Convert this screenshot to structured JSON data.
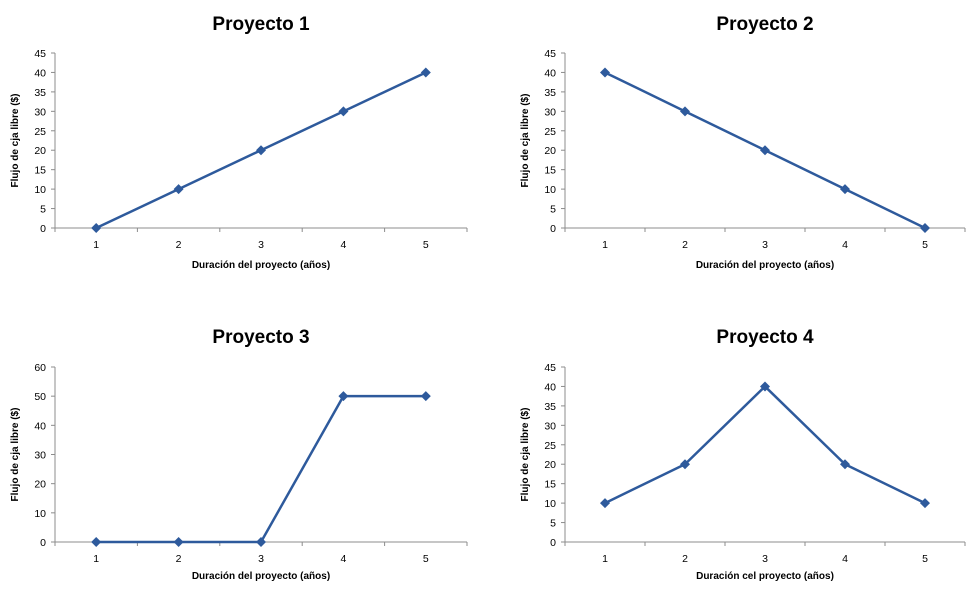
{
  "colors": {
    "series": "#2e5a9c",
    "axis": "#8c8c8c",
    "text": "#000000"
  },
  "chart_data": [
    {
      "type": "line",
      "title": "Proyecto 1",
      "xlabel": "Duración del proyecto (años)",
      "ylabel": "Flujo de cja libre ($)",
      "categories": [
        "1",
        "2",
        "3",
        "4",
        "5"
      ],
      "values": [
        0,
        10,
        20,
        30,
        40
      ],
      "yticks": [
        "0",
        "5",
        "10",
        "15",
        "20",
        "25",
        "30",
        "35",
        "40",
        "45"
      ],
      "ylim": [
        0,
        45
      ],
      "grid": false,
      "legend": "none",
      "marker": "diamond"
    },
    {
      "type": "line",
      "title": "Proyecto 2",
      "xlabel": "Duración del proyecto (años)",
      "ylabel": "Flujo de cja libre ($)",
      "categories": [
        "1",
        "2",
        "3",
        "4",
        "5"
      ],
      "values": [
        40,
        30,
        20,
        10,
        0
      ],
      "yticks": [
        "0",
        "5",
        "10",
        "15",
        "20",
        "25",
        "30",
        "35",
        "40",
        "45"
      ],
      "ylim": [
        0,
        45
      ],
      "grid": false,
      "legend": "none",
      "marker": "diamond"
    },
    {
      "type": "line",
      "title": "Proyecto 3",
      "xlabel": "Duración del proyecto (años)",
      "ylabel": "Flujo de cja libre ($)",
      "categories": [
        "1",
        "2",
        "3",
        "4",
        "5"
      ],
      "values": [
        0,
        0,
        0,
        50,
        50
      ],
      "yticks": [
        "0",
        "10",
        "20",
        "30",
        "40",
        "50",
        "60"
      ],
      "ylim": [
        0,
        60
      ],
      "grid": false,
      "legend": "none",
      "marker": "diamond"
    },
    {
      "type": "line",
      "title": "Proyecto 4",
      "xlabel": "Duración cel proyecto (años)",
      "ylabel": "Flujo de cja libre ($)",
      "categories": [
        "1",
        "2",
        "3",
        "4",
        "5"
      ],
      "values": [
        10,
        20,
        40,
        20,
        10
      ],
      "yticks": [
        "0",
        "5",
        "10",
        "15",
        "20",
        "25",
        "30",
        "35",
        "40",
        "45"
      ],
      "ylim": [
        0,
        45
      ],
      "grid": false,
      "legend": "none",
      "marker": "diamond"
    }
  ]
}
